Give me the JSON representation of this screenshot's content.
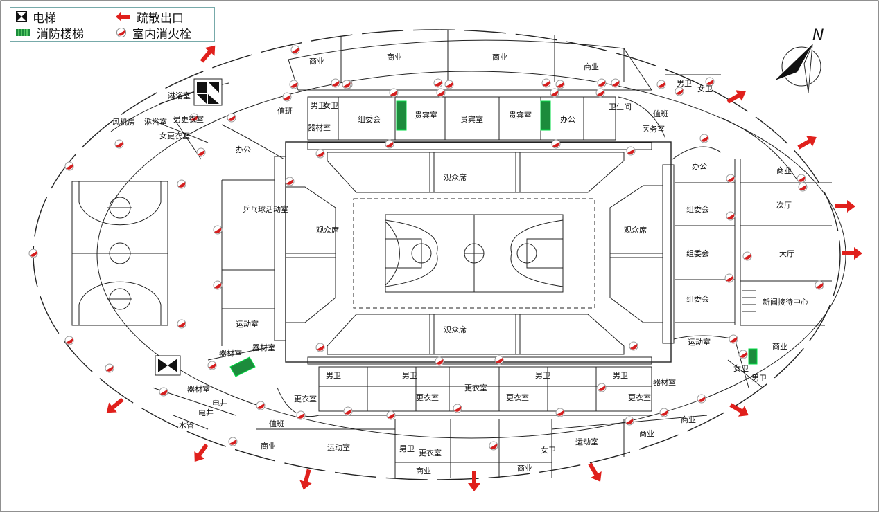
{
  "legend": {
    "elevator": "电梯",
    "exit": "疏散出口",
    "fire_stair": "消防楼梯",
    "hydrant": "室内消火栓"
  },
  "compass": "N",
  "colors": {
    "exit_arrow": "#e0201c",
    "fire_stair": "#1c8c3c",
    "hydrant": "#d41e1e",
    "line": "#222222"
  },
  "labels": {
    "commerce": "商业",
    "male_wc": "男卫",
    "female_wc": "女卫",
    "duty": "值班",
    "equipment": "器材室",
    "organizing": "组委会",
    "vip": "贵宾室",
    "office": "办公",
    "wc_room": "卫生间",
    "guard": "值班",
    "medical": "医务室",
    "shower": "淋浴室",
    "fan_room": "风机房",
    "shower2": "淋浴室",
    "male_locker": "男更衣室",
    "female_locker": "女更衣室",
    "audience": "观众席",
    "pingpong": "乒乓球活动室",
    "sport_room": "运动室",
    "locker": "更衣室",
    "elec_shaft": "电井",
    "water_shaft": "水管",
    "lobby": "大厅",
    "second_hall": "次厅",
    "press": "新闻接待中心"
  }
}
